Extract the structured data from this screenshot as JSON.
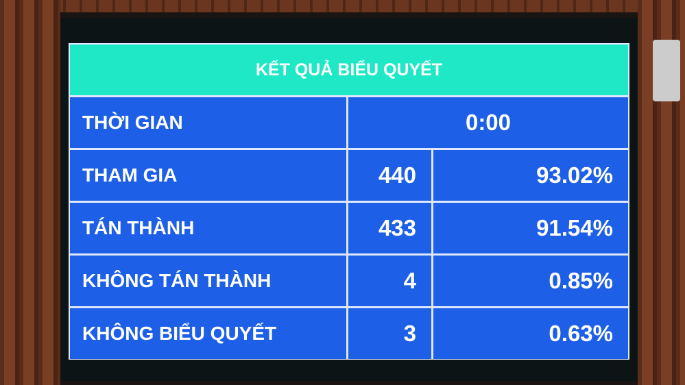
{
  "title": "KẾT QUẢ BIỂU QUYẾT",
  "time": {
    "label": "THỜI GIAN",
    "value": "0:00"
  },
  "rows": [
    {
      "label": "THAM GIA",
      "count": "440",
      "percent": "93.02%"
    },
    {
      "label": "TÁN THÀNH",
      "count": "433",
      "percent": "91.54%"
    },
    {
      "label": "KHÔNG TÁN THÀNH",
      "count": "4",
      "percent": "0.85%"
    },
    {
      "label": "KHÔNG BIỂU QUYẾT",
      "count": "3",
      "percent": "0.63%"
    }
  ],
  "colors": {
    "header": "#1ee8c6",
    "cell": "#1d5fe6",
    "text": "#ffffff"
  }
}
